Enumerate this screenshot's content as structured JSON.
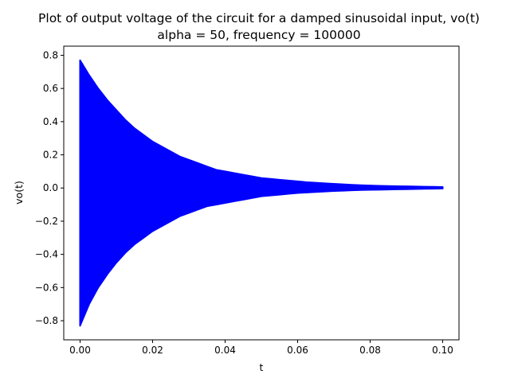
{
  "chart_data": {
    "type": "line",
    "title": "Plot of output voltage of the circuit for a damped sinusoidal input, vo(t)",
    "subtitle": "alpha = 50, frequency = 100000",
    "xlabel": "t",
    "ylabel": "vo(t)",
    "xlim": [
      -0.0045,
      0.1045
    ],
    "ylim": [
      -0.915,
      0.855
    ],
    "xticks": [
      0.0,
      0.02,
      0.04,
      0.06,
      0.08,
      0.1
    ],
    "xtick_labels": [
      "0.00",
      "0.02",
      "0.04",
      "0.06",
      "0.08",
      "0.10"
    ],
    "yticks": [
      -0.8,
      -0.6,
      -0.4,
      -0.2,
      0.0,
      0.2,
      0.4,
      0.6,
      0.8
    ],
    "ytick_labels": [
      "−0.8",
      "−0.6",
      "−0.4",
      "−0.2",
      "0.0",
      "0.2",
      "0.4",
      "0.6",
      "0.8"
    ],
    "grid": false,
    "series": [
      {
        "color": "#0000ff",
        "x": [
          0.0,
          0.0025,
          0.005,
          0.0075,
          0.01,
          0.0125,
          0.015,
          0.0175,
          0.02,
          0.0225,
          0.025,
          0.0275,
          0.03,
          0.0325,
          0.035,
          0.0375,
          0.04,
          0.0425,
          0.045,
          0.0475,
          0.05,
          0.0525,
          0.055,
          0.0575,
          0.06,
          0.0625,
          0.065,
          0.0675,
          0.07,
          0.0725,
          0.075,
          0.0775,
          0.08,
          0.0825,
          0.085,
          0.0875,
          0.09,
          0.0925,
          0.095,
          0.0975,
          0.1
        ],
        "upper": [
          0.77,
          0.68,
          0.6,
          0.53,
          0.47,
          0.41,
          0.36,
          0.32,
          0.28,
          0.25,
          0.22,
          0.19,
          0.17,
          0.15,
          0.13,
          0.11,
          0.1,
          0.09,
          0.08,
          0.07,
          0.06,
          0.055,
          0.05,
          0.045,
          0.04,
          0.035,
          0.032,
          0.028,
          0.025,
          0.022,
          0.019,
          0.017,
          0.015,
          0.013,
          0.012,
          0.011,
          0.01,
          0.009,
          0.008,
          0.007,
          0.006
        ],
        "lower": [
          -0.83,
          -0.7,
          -0.6,
          -0.52,
          -0.45,
          -0.39,
          -0.34,
          -0.3,
          -0.26,
          -0.23,
          -0.2,
          -0.17,
          -0.15,
          -0.13,
          -0.11,
          -0.1,
          -0.09,
          -0.08,
          -0.07,
          -0.06,
          -0.05,
          -0.045,
          -0.04,
          -0.035,
          -0.03,
          -0.027,
          -0.024,
          -0.021,
          -0.018,
          -0.016,
          -0.014,
          -0.012,
          -0.011,
          -0.01,
          -0.009,
          -0.008,
          -0.007,
          -0.006,
          -0.005,
          -0.004,
          -0.003
        ]
      }
    ]
  }
}
